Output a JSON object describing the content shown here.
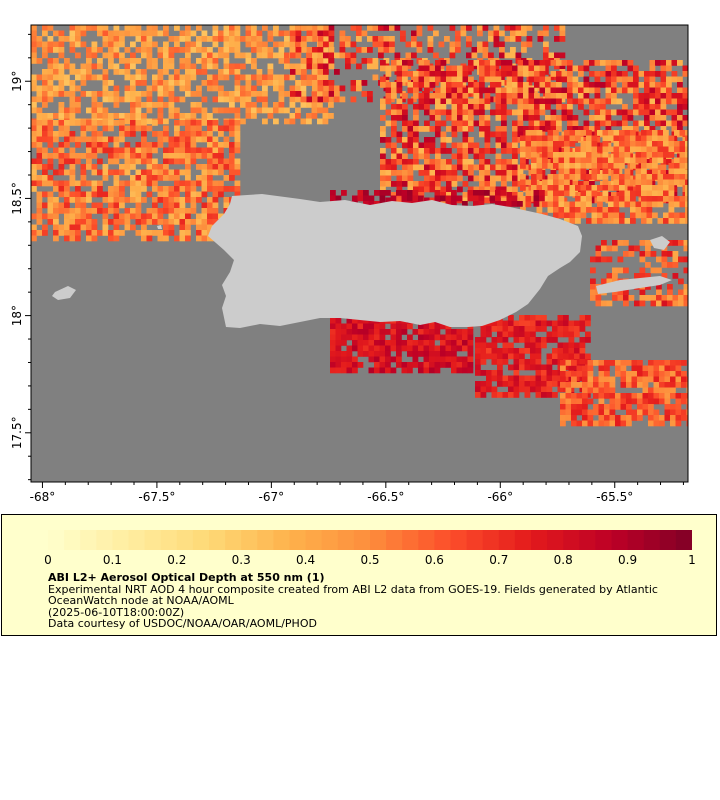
{
  "map": {
    "lat_ticks": [
      "19°",
      "18.5°",
      "18°",
      "17.5°"
    ],
    "lon_ticks": [
      "-68°",
      "-67.5°",
      "-67°",
      "-66.5°",
      "-66°",
      "-65.5°"
    ],
    "ocean_color": "#808080",
    "land_color": "#cccccc",
    "extent": {
      "lon_min": -68.05,
      "lon_max": -65.18,
      "lat_min": 17.29,
      "lat_max": 19.24
    }
  },
  "legend": {
    "colorbar_labels": [
      "0",
      "0.1",
      "0.2",
      "0.3",
      "0.4",
      "0.5",
      "0.6",
      "0.7",
      "0.8",
      "0.9",
      "1"
    ],
    "colors": [
      "#ffffcc",
      "#ffeda0",
      "#fed976",
      "#feb24c",
      "#fd8d3c",
      "#fc4e2a",
      "#e31a1c",
      "#bd0026",
      "#800026"
    ],
    "background": "#ffffcc",
    "title": "ABI L2+ Aerosol Optical Depth at 550 nm (1)",
    "description": "Experimental NRT AOD 4 hour composite created from ABI L2 data from GOES-19. Fields generated by Atlantic OceanWatch node at NOAA/AOML",
    "timestamp": "(2025-06-10T18:00:00Z)",
    "credit": "Data courtesy of USDOC/NOAA/OAR/AOML/PHOD"
  }
}
